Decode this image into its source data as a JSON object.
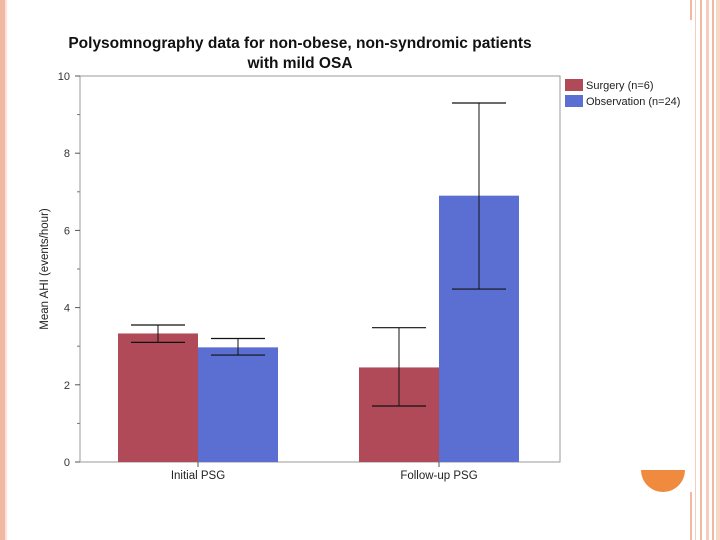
{
  "slide": {
    "accent_color": "#f08a3e",
    "border_color": "#f2b9a2"
  },
  "chart_data": {
    "type": "bar",
    "title_line1": "Polysomnography data for non-obese, non-syndromic patients",
    "title_line2": "with mild OSA",
    "ylabel": "Mean AHI (events/hour)",
    "xlabel": "",
    "ylim": [
      0,
      10
    ],
    "yticks": [
      "0",
      "2",
      "4",
      "6",
      "8",
      "10"
    ],
    "categories": [
      "Initial PSG",
      "Follow-up PSG"
    ],
    "series": [
      {
        "name": "Surgery (n=6)",
        "color": "#b04a59",
        "values": [
          3.33,
          2.45
        ],
        "error_low": [
          3.1,
          1.45
        ],
        "error_high": [
          3.55,
          3.48
        ]
      },
      {
        "name": "Observation (n=24)",
        "color": "#5b6fd3",
        "values": [
          2.97,
          6.9
        ],
        "error_low": [
          2.77,
          4.48
        ],
        "error_high": [
          3.2,
          9.3
        ]
      }
    ],
    "legend_position": "top-right",
    "grid": false
  }
}
